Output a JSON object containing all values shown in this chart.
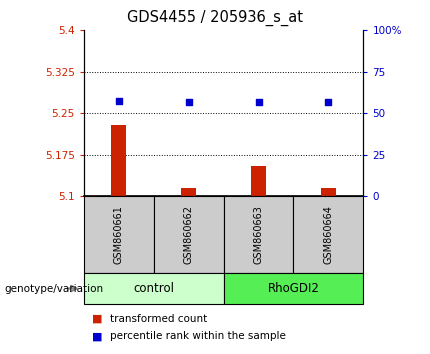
{
  "title": "GDS4455 / 205936_s_at",
  "samples": [
    "GSM860661",
    "GSM860662",
    "GSM860663",
    "GSM860664"
  ],
  "groups": [
    "control",
    "control",
    "RhoGDI2",
    "RhoGDI2"
  ],
  "bar_values": [
    5.228,
    5.115,
    5.155,
    5.115
  ],
  "dot_values": [
    5.272,
    5.27,
    5.27,
    5.27
  ],
  "ylim_left": [
    5.1,
    5.4
  ],
  "ylim_right": [
    0,
    100
  ],
  "yticks_left": [
    5.1,
    5.175,
    5.25,
    5.325,
    5.4
  ],
  "yticks_right": [
    0,
    25,
    50,
    75,
    100
  ],
  "ytick_labels_left": [
    "5.1",
    "5.175",
    "5.25",
    "5.325",
    "5.4"
  ],
  "ytick_labels_right": [
    "0",
    "25",
    "50",
    "75",
    "100%"
  ],
  "hlines": [
    5.175,
    5.25,
    5.325
  ],
  "bar_color": "#cc2200",
  "dot_color": "#0000cc",
  "bar_base": 5.1,
  "left_ylabel_color": "#cc2200",
  "right_ylabel_color": "#0000cc",
  "legend_items": [
    "transformed count",
    "percentile rank within the sample"
  ],
  "genotype_label": "genotype/variation",
  "sample_box_color": "#cccccc",
  "group_colors": {
    "control": "#ccffcc",
    "RhoGDI2": "#55ee55"
  },
  "group_indices": {
    "control": [
      0,
      1
    ],
    "RhoGDI2": [
      2,
      3
    ]
  }
}
